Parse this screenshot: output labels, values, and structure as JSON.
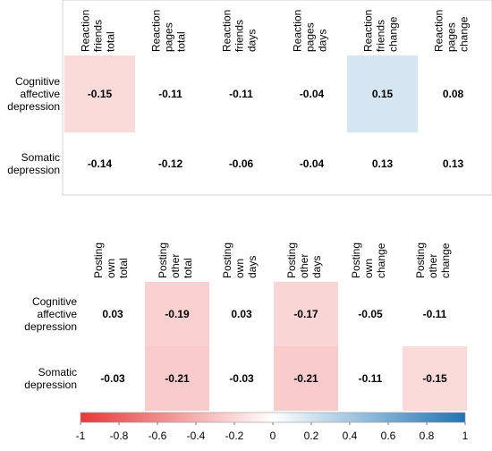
{
  "chart_data": [
    {
      "type": "heatmap",
      "columns": [
        [
          "Reaction",
          "friends",
          "total"
        ],
        [
          "Reaction",
          "pages",
          "total"
        ],
        [
          "Reaction",
          "friends",
          "days"
        ],
        [
          "Reaction",
          "pages",
          "days"
        ],
        [
          "Reaction",
          "friends",
          "change"
        ],
        [
          "Reaction",
          "pages",
          "change"
        ]
      ],
      "rows": [
        [
          "Cognitive",
          "affective",
          "depression"
        ],
        [
          "Somatic",
          "depression"
        ]
      ],
      "values": [
        [
          -0.15,
          -0.11,
          -0.11,
          -0.04,
          0.15,
          0.08
        ],
        [
          -0.14,
          -0.12,
          -0.06,
          -0.04,
          0.13,
          0.13
        ]
      ],
      "value_labels": [
        [
          "-0.15",
          "-0.11",
          "-0.11",
          "-0.04",
          "0.15",
          "0.08"
        ],
        [
          "-0.14",
          "-0.12",
          "-0.06",
          "-0.04",
          "0.13",
          "0.13"
        ]
      ],
      "shaded": [
        [
          true,
          false,
          false,
          false,
          true,
          false
        ],
        [
          false,
          false,
          false,
          false,
          false,
          false
        ]
      ]
    },
    {
      "type": "heatmap",
      "columns": [
        [
          "Posting",
          "own",
          "total"
        ],
        [
          "Posting",
          "other",
          "total"
        ],
        [
          "Posting",
          "own",
          "days"
        ],
        [
          "Posting",
          "other",
          "days"
        ],
        [
          "Posting",
          "own",
          "change"
        ],
        [
          "Posting",
          "other",
          "change"
        ]
      ],
      "rows": [
        [
          "Cognitive",
          "affective",
          "depression"
        ],
        [
          "Somatic",
          "depression"
        ]
      ],
      "values": [
        [
          0.03,
          -0.19,
          0.03,
          -0.17,
          -0.05,
          -0.11
        ],
        [
          -0.03,
          -0.21,
          -0.03,
          -0.21,
          -0.11,
          -0.15
        ]
      ],
      "value_labels": [
        [
          "0.03",
          "-0.19",
          "0.03",
          "-0.17",
          "-0.05",
          "-0.11"
        ],
        [
          "-0.03",
          "-0.21",
          "-0.03",
          "-0.21",
          "-0.11",
          "-0.15"
        ]
      ],
      "shaded": [
        [
          false,
          true,
          false,
          true,
          false,
          false
        ],
        [
          false,
          true,
          false,
          true,
          false,
          true
        ]
      ]
    }
  ],
  "colorbar": {
    "range": [
      -1,
      1
    ],
    "ticks": [
      "-1",
      "-0.8",
      "-0.6",
      "-0.4",
      "-0.2",
      "0",
      "0.2",
      "0.4",
      "0.6",
      "0.8",
      "1"
    ],
    "colors": {
      "negative": "#e8383a",
      "zero": "#ffffff",
      "positive": "#1f74b4"
    }
  }
}
